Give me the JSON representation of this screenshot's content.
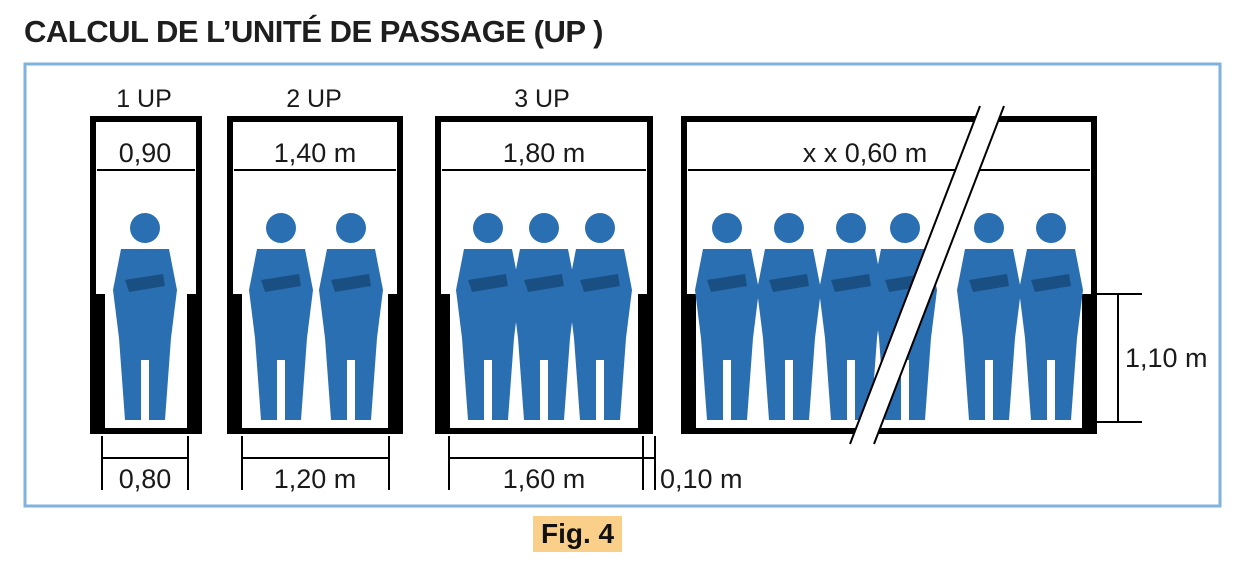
{
  "title": "CALCUL DE L’UNITÉ DE PASSAGE (UP )",
  "caption": "Fig. 4",
  "colors": {
    "frame_border": "#7fb2dc",
    "person": "#2a6fb1",
    "person_dark": "#1e5c98",
    "caption_bg": "#f9cf8a",
    "wall": "#000000"
  },
  "panels": [
    {
      "label": "1 UP",
      "top_width": "0,90",
      "bottom_width": "0,80",
      "people": 1
    },
    {
      "label": "2 UP",
      "top_width": "1,40 m",
      "bottom_width": "1,20 m",
      "people": 2
    },
    {
      "label": "3 UP",
      "top_width": "1,80 m",
      "bottom_width": "1,60 m",
      "people": 3
    },
    {
      "label": "",
      "top_width": "x x 0,60 m",
      "bottom_width": "",
      "people": 6
    }
  ],
  "wall_thickness_label": "0,10 m",
  "height_label": "1,10 m"
}
